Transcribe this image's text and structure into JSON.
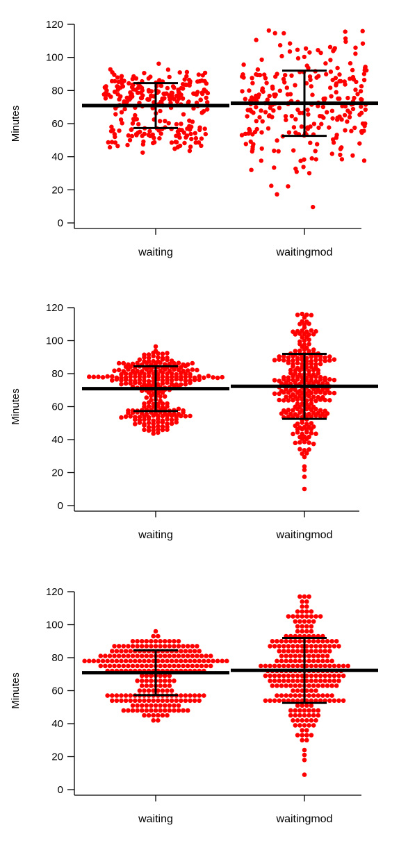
{
  "chart_data": [
    {
      "type": "scatter",
      "style": "jittered-strip",
      "categories": [
        "waiting",
        "waitingmod"
      ],
      "ylabel": "Minutes",
      "ylim": [
        0,
        120
      ],
      "yticks": [
        "0",
        "20",
        "40",
        "60",
        "80",
        "100",
        "120"
      ],
      "grid": false,
      "point_color": "#ff0000",
      "summary": [
        {
          "category": "waiting",
          "mean": 70.9,
          "upper": 84.5,
          "lower": 57.3
        },
        {
          "category": "waitingmod",
          "mean": 72.3,
          "upper": 92.0,
          "lower": 52.6
        }
      ]
    },
    {
      "type": "scatter",
      "style": "beeswarm",
      "categories": [
        "waiting",
        "waitingmod"
      ],
      "ylabel": "Minutes",
      "ylim": [
        0,
        120
      ],
      "yticks": [
        "0",
        "20",
        "40",
        "60",
        "80",
        "100",
        "120"
      ],
      "grid": false,
      "point_color": "#ff0000",
      "summary": [
        {
          "category": "waiting",
          "mean": 70.9,
          "upper": 84.5,
          "lower": 57.3
        },
        {
          "category": "waitingmod",
          "mean": 72.3,
          "upper": 92.0,
          "lower": 52.6
        }
      ]
    },
    {
      "type": "scatter",
      "style": "binned-dot-plot",
      "categories": [
        "waiting",
        "waitingmod"
      ],
      "ylabel": "Minutes",
      "ylim": [
        0,
        120
      ],
      "yticks": [
        "0",
        "20",
        "40",
        "60",
        "80",
        "100",
        "120"
      ],
      "grid": false,
      "point_color": "#ff0000",
      "summary": [
        {
          "category": "waiting",
          "mean": 70.9,
          "upper": 84.5,
          "lower": 57.3
        },
        {
          "category": "waitingmod",
          "mean": 72.3,
          "upper": 92.0,
          "lower": 52.6
        }
      ]
    }
  ]
}
